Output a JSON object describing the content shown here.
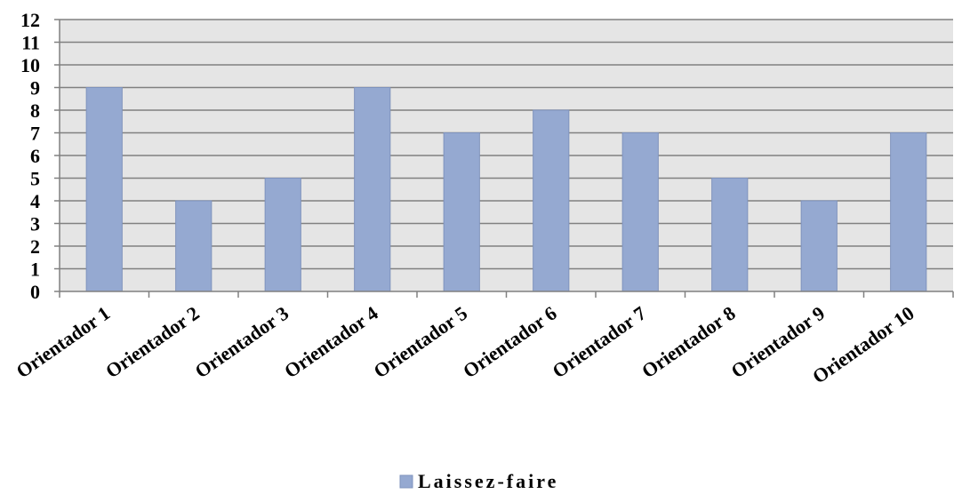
{
  "chart_data": {
    "type": "bar",
    "categories": [
      "Orientador 1",
      "Orientador 2",
      "Orientador 3",
      "Orientador 4",
      "Orientador 5",
      "Orientador 6",
      "Orientador 7",
      "Orientador 8",
      "Orientador 9",
      "Orientador 10"
    ],
    "series": [
      {
        "name": "Laissez-faire",
        "values": [
          9,
          4,
          5,
          9,
          7,
          8,
          7,
          5,
          4,
          7
        ],
        "color": "#95a9d1"
      }
    ],
    "title": "",
    "xlabel": "",
    "ylabel": "",
    "ylim": [
      0,
      12
    ],
    "yticks": [
      0,
      1,
      2,
      3,
      4,
      5,
      6,
      7,
      8,
      9,
      10,
      11,
      12
    ],
    "grid": true,
    "legend": "bottom-center",
    "plot_background": "#e5e5e5",
    "gridline_color": "#808080",
    "bar_edge_color": "#7f93bd"
  }
}
